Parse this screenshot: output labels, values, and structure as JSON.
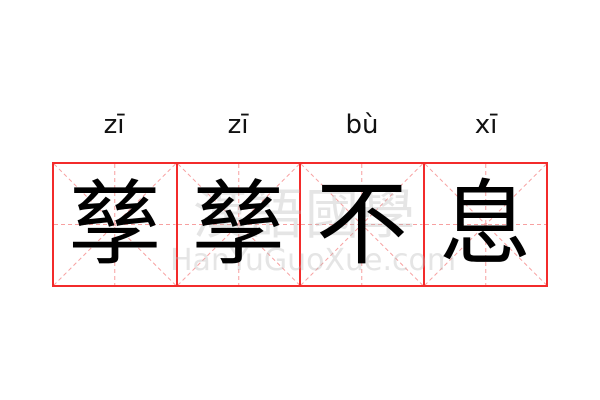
{
  "idiom": {
    "pinyin": [
      "zī",
      "zī",
      "bù",
      "xī"
    ],
    "characters": [
      "孳",
      "孳",
      "不",
      "息"
    ]
  },
  "watermark": {
    "cn": "漢語國學",
    "en": "HanYuGuoXue.com"
  },
  "colors": {
    "grid_border": "#f32b2b",
    "guide_lines": "#f7a0a0",
    "text": "#000000"
  }
}
